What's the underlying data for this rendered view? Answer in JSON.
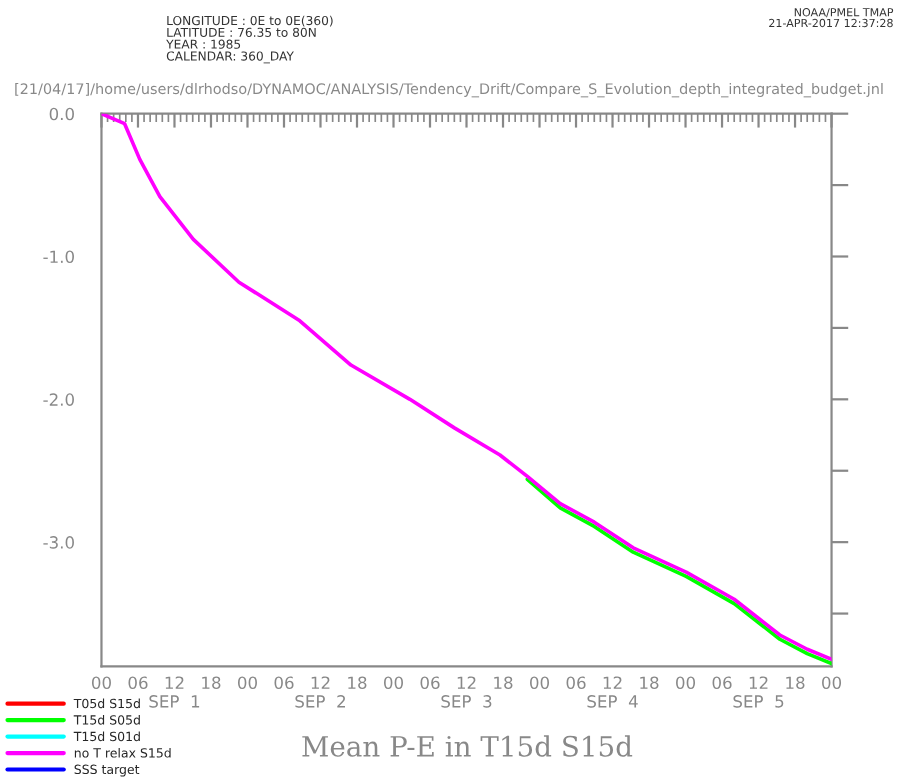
{
  "chart_data": {
    "type": "line",
    "title": "Mean P-E in T15d S15d",
    "subtitle": "[21/04/17]/home/users/dlrhodso/DYNAMOC/ANALYSIS/Tendency_Drift/Compare_S_Evolution_depth_integrated_budget.jnl",
    "annotations": [
      "LONGITUDE : 0E to 0E(360)\nLATITUDE : 76.35 to 80N\nYEAR : 1985\nCALENDAR: 360_DAY",
      "NOAA/PMEL TMAP\n21-APR-2017 12:37:28"
    ],
    "x": [
      "1985-09-01T00:00",
      "1985-09-01T03:48",
      "1985-09-01T06:18",
      "1985-09-01T09:36",
      "1985-09-01T15:06",
      "1985-09-01T22:36",
      "1985-09-02T08:36",
      "1985-09-02T17:00",
      "1985-09-03T02:42",
      "1985-09-03T10:00",
      "1985-09-03T17:30",
      "1985-09-03T22:00",
      "1985-09-04T03:24",
      "1985-09-04T09:00",
      "1985-09-04T15:24",
      "1985-09-05T00:06",
      "1985-09-05T08:00",
      "1985-09-05T15:30",
      "1985-09-05T20:00",
      "1985-09-06T00:00"
    ],
    "series": [
      {
        "name": "T05d S15d",
        "color": "#ff0000",
        "values": [
          null,
          null,
          null,
          null,
          null,
          null,
          null,
          null,
          null,
          null,
          null,
          null,
          null,
          null,
          null,
          null,
          null,
          null,
          null,
          null
        ]
      },
      {
        "name": "T15d S05d",
        "color": "#00ff00",
        "values": [
          null,
          null,
          null,
          null,
          null,
          null,
          null,
          null,
          null,
          null,
          null,
          -2.56,
          -2.76,
          -2.89,
          -3.07,
          -3.24,
          -3.43,
          -3.68,
          -3.78,
          -3.85
        ]
      },
      {
        "name": "T15d S01d",
        "color": "#00ffff",
        "values": [
          null,
          null,
          null,
          null,
          null,
          null,
          null,
          null,
          null,
          null,
          null,
          null,
          null,
          null,
          null,
          null,
          null,
          null,
          null,
          null
        ]
      },
      {
        "name": "no T relax S15d",
        "color": "#ff00ff",
        "values": [
          0,
          -0.07,
          -0.32,
          -0.58,
          -0.88,
          -1.18,
          -1.45,
          -1.76,
          -2.0,
          -2.2,
          -2.39,
          -2.54,
          -2.73,
          -2.86,
          -3.04,
          -3.21,
          -3.4,
          -3.65,
          -3.75,
          -3.82
        ]
      },
      {
        "name": "SSS target",
        "color": "#0000ff",
        "values": [
          null,
          null,
          null,
          null,
          null,
          null,
          null,
          null,
          null,
          null,
          null,
          null,
          null,
          null,
          null,
          null,
          null,
          null,
          null,
          null
        ]
      }
    ],
    "xlim": [
      "1985-09-01T00:00",
      "1985-09-06T00:00"
    ],
    "xticks": [
      {
        "value": "1985-09-01T00:00",
        "label": "00"
      },
      {
        "value": "1985-09-01T06:00",
        "label": "06"
      },
      {
        "value": "1985-09-01T12:00",
        "label": "12\nSEP  1"
      },
      {
        "value": "1985-09-01T18:00",
        "label": "18"
      },
      {
        "value": "1985-09-02T00:00",
        "label": "00"
      },
      {
        "value": "1985-09-02T06:00",
        "label": "06"
      },
      {
        "value": "1985-09-02T12:00",
        "label": "12\nSEP  2"
      },
      {
        "value": "1985-09-02T18:00",
        "label": "18"
      },
      {
        "value": "1985-09-03T00:00",
        "label": "00"
      },
      {
        "value": "1985-09-03T06:00",
        "label": "06"
      },
      {
        "value": "1985-09-03T12:00",
        "label": "12\nSEP  3"
      },
      {
        "value": "1985-09-03T18:00",
        "label": "18"
      },
      {
        "value": "1985-09-04T00:00",
        "label": "00"
      },
      {
        "value": "1985-09-04T06:00",
        "label": "06"
      },
      {
        "value": "1985-09-04T12:00",
        "label": "12\nSEP  4"
      },
      {
        "value": "1985-09-04T18:00",
        "label": "18"
      },
      {
        "value": "1985-09-05T00:00",
        "label": "00"
      },
      {
        "value": "1985-09-05T06:00",
        "label": "06"
      },
      {
        "value": "1985-09-05T12:00",
        "label": "12\nSEP  5"
      },
      {
        "value": "1985-09-05T18:00",
        "label": "18"
      },
      {
        "value": "1985-09-06T00:00",
        "label": "00"
      }
    ],
    "ylim": [
      -3.87,
      0
    ],
    "yticks": [
      {
        "value": 0,
        "label": "0.0"
      },
      {
        "value": -0.5,
        "label": null
      },
      {
        "value": -1,
        "label": "-1.0"
      },
      {
        "value": -1.5,
        "label": null
      },
      {
        "value": -2,
        "label": "-2.0"
      },
      {
        "value": -2.5,
        "label": null
      },
      {
        "value": -3,
        "label": "-3.0"
      },
      {
        "value": -3.5,
        "label": null
      }
    ],
    "legend": "bottom left",
    "marker": "none",
    "line_style": "solid"
  }
}
